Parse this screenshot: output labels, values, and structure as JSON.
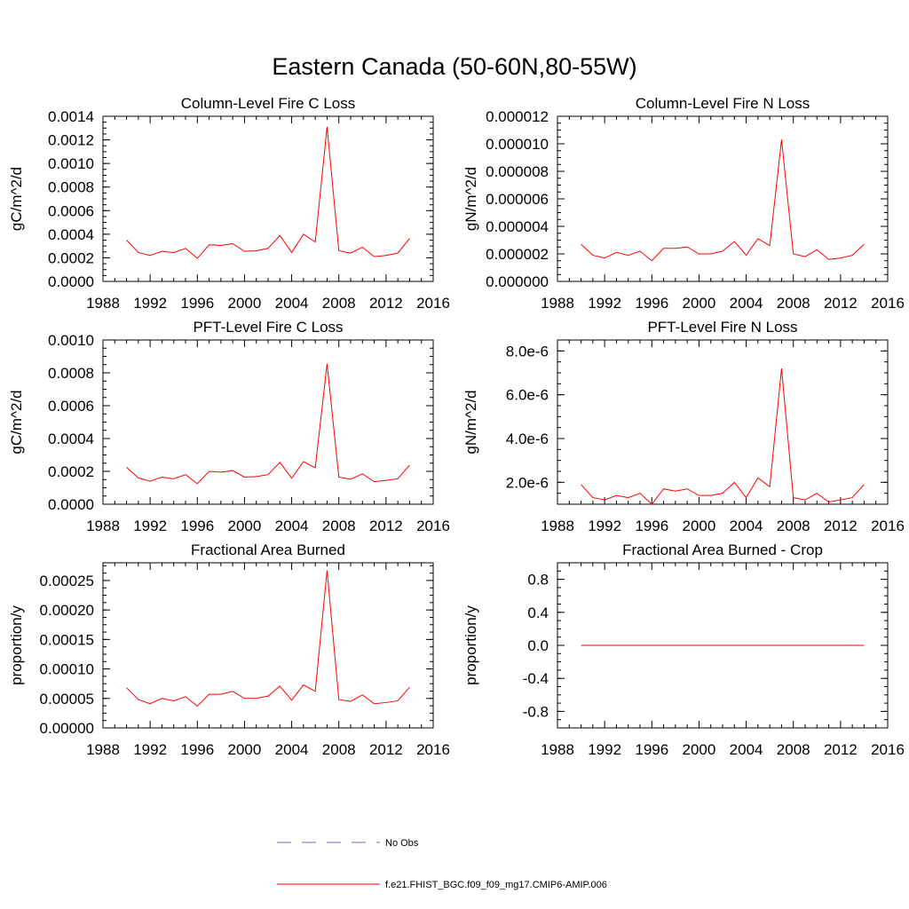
{
  "figure": {
    "title": "Eastern Canada (50-60N,80-55W)",
    "legend": [
      {
        "label": "No Obs",
        "color": "#6f6fb8",
        "style": "dashed"
      },
      {
        "label": "f.e21.FHIST_BGC.f09_f09_mg17.CMIP6-AMIP.006",
        "color": "#ff0000",
        "style": "solid"
      }
    ]
  },
  "chart_data": [
    {
      "type": "line",
      "title": "Column-Level Fire C Loss",
      "ylabel": "gC/m^2/d",
      "xlim": [
        1988,
        2016
      ],
      "ylim": [
        0,
        0.0014
      ],
      "xticks": [
        "1988",
        "1992",
        "1996",
        "2000",
        "2004",
        "2008",
        "2012",
        "2016"
      ],
      "yticks": [
        "0.0000",
        "0.0002",
        "0.0004",
        "0.0006",
        "0.0008",
        "0.0010",
        "0.0012",
        "0.0014"
      ],
      "x": [
        1990,
        1991,
        1992,
        1993,
        1994,
        1995,
        1996,
        1997,
        1998,
        1999,
        2000,
        2001,
        2002,
        2003,
        2004,
        2005,
        2006,
        2007,
        2008,
        2009,
        2010,
        2011,
        2012,
        2013,
        2014
      ],
      "series": [
        {
          "name": "f.e21.FHIST_BGC.f09_f09_mg17.CMIP6-AMIP.006",
          "color": "#ff0000",
          "values": [
            0.00035,
            0.000245,
            0.00022,
            0.000255,
            0.000245,
            0.00028,
            0.000195,
            0.00031,
            0.000305,
            0.00032,
            0.000255,
            0.00026,
            0.00028,
            0.00039,
            0.000245,
            0.0004,
            0.000335,
            0.00131,
            0.00026,
            0.00024,
            0.00029,
            0.00021,
            0.00022,
            0.00024,
            0.000365
          ]
        }
      ]
    },
    {
      "type": "line",
      "title": "Column-Level Fire N Loss",
      "ylabel": "gN/m^2/d",
      "xlim": [
        1988,
        2016
      ],
      "ylim": [
        0,
        1.2e-05
      ],
      "xticks": [
        "1988",
        "1992",
        "1996",
        "2000",
        "2004",
        "2008",
        "2012",
        "2016"
      ],
      "yticks": [
        "0.000000",
        "0.000002",
        "0.000004",
        "0.000006",
        "0.000008",
        "0.000010",
        "0.000012"
      ],
      "x": [
        1990,
        1991,
        1992,
        1993,
        1994,
        1995,
        1996,
        1997,
        1998,
        1999,
        2000,
        2001,
        2002,
        2003,
        2004,
        2005,
        2006,
        2007,
        2008,
        2009,
        2010,
        2011,
        2012,
        2013,
        2014
      ],
      "series": [
        {
          "name": "f.e21.FHIST_BGC.f09_f09_mg17.CMIP6-AMIP.006",
          "color": "#ff0000",
          "values": [
            2.7e-06,
            1.9e-06,
            1.7e-06,
            2.1e-06,
            1.9e-06,
            2.2e-06,
            1.5e-06,
            2.4e-06,
            2.4e-06,
            2.5e-06,
            2e-06,
            2e-06,
            2.2e-06,
            2.9e-06,
            1.9e-06,
            3.1e-06,
            2.6e-06,
            1.03e-05,
            2e-06,
            1.8e-06,
            2.3e-06,
            1.6e-06,
            1.7e-06,
            1.9e-06,
            2.7e-06
          ]
        }
      ]
    },
    {
      "type": "line",
      "title": "PFT-Level Fire C Loss",
      "ylabel": "gC/m^2/d",
      "xlim": [
        1988,
        2016
      ],
      "ylim": [
        0,
        0.001
      ],
      "xticks": [
        "1988",
        "1992",
        "1996",
        "2000",
        "2004",
        "2008",
        "2012",
        "2016"
      ],
      "yticks": [
        "0.0000",
        "0.0002",
        "0.0004",
        "0.0006",
        "0.0008",
        "0.0010"
      ],
      "x": [
        1990,
        1991,
        1992,
        1993,
        1994,
        1995,
        1996,
        1997,
        1998,
        1999,
        2000,
        2001,
        2002,
        2003,
        2004,
        2005,
        2006,
        2007,
        2008,
        2009,
        2010,
        2011,
        2012,
        2013,
        2014
      ],
      "series": [
        {
          "name": "f.e21.FHIST_BGC.f09_f09_mg17.CMIP6-AMIP.006",
          "color": "#ff0000",
          "values": [
            0.000225,
            0.00016,
            0.00014,
            0.000165,
            0.000155,
            0.00018,
            0.000125,
            0.0002,
            0.000195,
            0.000205,
            0.000165,
            0.000168,
            0.00018,
            0.000255,
            0.000158,
            0.00026,
            0.000222,
            0.000855,
            0.000165,
            0.000152,
            0.000185,
            0.000137,
            0.000145,
            0.000155,
            0.000238
          ]
        }
      ]
    },
    {
      "type": "line",
      "title": "PFT-Level Fire N Loss",
      "ylabel": "gN/m^2/d",
      "xlim": [
        1988,
        2016
      ],
      "ylim": [
        1e-06,
        8.5e-06
      ],
      "xticks": [
        "1988",
        "1992",
        "1996",
        "2000",
        "2004",
        "2008",
        "2012",
        "2016"
      ],
      "yticks": [
        "2.0e-6",
        "4.0e-6",
        "6.0e-6",
        "8.0e-6"
      ],
      "ytick_values": [
        2e-06,
        4e-06,
        6e-06,
        8e-06
      ],
      "x": [
        1990,
        1991,
        1992,
        1993,
        1994,
        1995,
        1996,
        1997,
        1998,
        1999,
        2000,
        2001,
        2002,
        2003,
        2004,
        2005,
        2006,
        2007,
        2008,
        2009,
        2010,
        2011,
        2012,
        2013,
        2014
      ],
      "series": [
        {
          "name": "f.e21.FHIST_BGC.f09_f09_mg17.CMIP6-AMIP.006",
          "color": "#ff0000",
          "values": [
            1.9e-06,
            1.3e-06,
            1.2e-06,
            1.4e-06,
            1.3e-06,
            1.5e-06,
            1e-06,
            1.7e-06,
            1.6e-06,
            1.7e-06,
            1.4e-06,
            1.4e-06,
            1.5e-06,
            2e-06,
            1.3e-06,
            2.2e-06,
            1.8e-06,
            7.2e-06,
            1.3e-06,
            1.2e-06,
            1.5e-06,
            1.1e-06,
            1.2e-06,
            1.3e-06,
            1.9e-06
          ]
        }
      ]
    },
    {
      "type": "line",
      "title": "Fractional Area Burned",
      "ylabel": "proportion/y",
      "xlim": [
        1988,
        2016
      ],
      "ylim": [
        0,
        0.00028
      ],
      "xticks": [
        "1988",
        "1992",
        "1996",
        "2000",
        "2004",
        "2008",
        "2012",
        "2016"
      ],
      "yticks": [
        "0.00000",
        "0.00005",
        "0.00010",
        "0.00015",
        "0.00020",
        "0.00025"
      ],
      "x": [
        1990,
        1991,
        1992,
        1993,
        1994,
        1995,
        1996,
        1997,
        1998,
        1999,
        2000,
        2001,
        2002,
        2003,
        2004,
        2005,
        2006,
        2007,
        2008,
        2009,
        2010,
        2011,
        2012,
        2013,
        2014
      ],
      "series": [
        {
          "name": "f.e21.FHIST_BGC.f09_f09_mg17.CMIP6-AMIP.006",
          "color": "#ff0000",
          "values": [
            6.8e-05,
            4.8e-05,
            4.1e-05,
            5e-05,
            4.6e-05,
            5.3e-05,
            3.7e-05,
            5.7e-05,
            5.7e-05,
            6.2e-05,
            5e-05,
            5e-05,
            5.4e-05,
            7.1e-05,
            4.7e-05,
            7.3e-05,
            6.2e-05,
            0.000267,
            4.8e-05,
            4.5e-05,
            5.6e-05,
            4.1e-05,
            4.3e-05,
            4.6e-05,
            6.9e-05
          ]
        }
      ]
    },
    {
      "type": "line",
      "title": "Fractional Area Burned - Crop",
      "ylabel": "proportion/y",
      "xlim": [
        1988,
        2016
      ],
      "ylim": [
        -1.0,
        1.0
      ],
      "xticks": [
        "1988",
        "1992",
        "1996",
        "2000",
        "2004",
        "2008",
        "2012",
        "2016"
      ],
      "yticks": [
        "-0.8",
        "-0.4",
        "0.0",
        "0.4",
        "0.8"
      ],
      "ytick_values": [
        -0.8,
        -0.4,
        0.0,
        0.4,
        0.8
      ],
      "x": [
        1990,
        1991,
        1992,
        1993,
        1994,
        1995,
        1996,
        1997,
        1998,
        1999,
        2000,
        2001,
        2002,
        2003,
        2004,
        2005,
        2006,
        2007,
        2008,
        2009,
        2010,
        2011,
        2012,
        2013,
        2014
      ],
      "series": [
        {
          "name": "f.e21.FHIST_BGC.f09_f09_mg17.CMIP6-AMIP.006",
          "color": "#ff0000",
          "values": [
            0,
            0,
            0,
            0,
            0,
            0,
            0,
            0,
            0,
            0,
            0,
            0,
            0,
            0,
            0,
            0,
            0,
            0,
            0,
            0,
            0,
            0,
            0,
            0,
            0
          ]
        }
      ]
    }
  ]
}
